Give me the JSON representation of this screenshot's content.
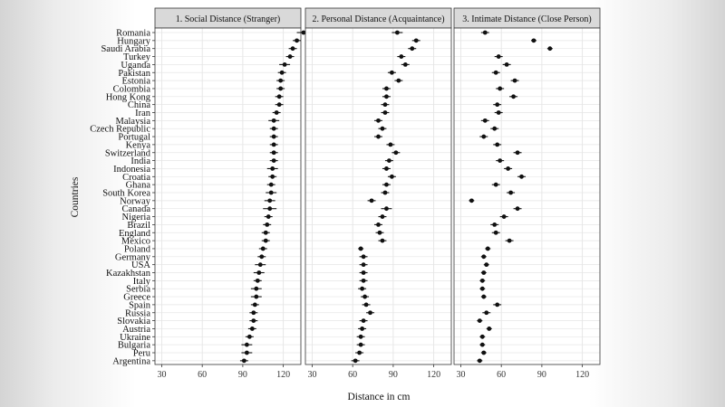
{
  "chart_data": {
    "type": "dot-range",
    "xlabel": "Distance in cm",
    "ylabel": "Countries",
    "xlim": [
      25,
      133
    ],
    "xticks": [
      30,
      60,
      90,
      120
    ],
    "grid": true,
    "countries": [
      "Romania",
      "Hungary",
      "Saudi Arabia",
      "Turkey",
      "Uganda",
      "Pakistan",
      "Estonia",
      "Colombia",
      "Hong Kong",
      "China",
      "Iran",
      "Malaysia",
      "Czech Republic",
      "Portugal",
      "Kenya",
      "Switzerland",
      "India",
      "Indonesia",
      "Croatia",
      "Ghana",
      "South Korea",
      "Norway",
      "Canada",
      "Nigeria",
      "Brazil",
      "England",
      "Mexico",
      "Poland",
      "Germany",
      "USA",
      "Kazakhstan",
      "Italy",
      "Serbia",
      "Greece",
      "Spain",
      "Russia",
      "Slovakia",
      "Austria",
      "Ukraine",
      "Bulgaria",
      "Peru",
      "Argentina"
    ],
    "panels": [
      {
        "title": "1. Social Distance (Stranger)",
        "values": [
          135,
          130,
          127,
          125,
          121,
          119,
          118,
          118,
          117,
          117,
          115,
          113,
          113,
          113,
          113,
          113,
          113,
          112,
          112,
          111,
          111,
          110,
          110,
          109,
          108,
          107,
          107,
          105,
          104,
          103,
          102,
          101,
          100,
          100,
          99,
          98,
          98,
          97,
          95,
          93,
          93,
          91
        ],
        "errors": [
          5,
          3,
          3,
          3,
          4,
          3,
          3,
          3,
          3,
          3,
          3,
          4,
          3,
          3,
          3,
          3,
          3,
          4,
          3,
          3,
          4,
          4,
          5,
          3,
          3,
          3,
          3,
          3,
          3,
          4,
          4,
          3,
          4,
          4,
          3,
          3,
          3,
          3,
          3,
          4,
          4,
          3
        ]
      },
      {
        "title": "2. Personal Distance (Acquaintance)",
        "values": [
          93,
          107,
          104,
          96,
          99,
          89,
          94,
          85,
          85,
          84,
          84,
          79,
          82,
          79,
          88,
          92,
          87,
          85,
          89,
          85,
          84,
          74,
          85,
          82,
          79,
          80,
          82,
          66,
          68,
          68,
          68,
          68,
          67,
          69,
          70,
          73,
          68,
          67,
          66,
          66,
          65,
          62
        ],
        "errors": [
          4,
          3,
          3,
          3,
          3,
          3,
          3,
          3,
          3,
          3,
          3,
          3,
          3,
          3,
          3,
          3,
          3,
          3,
          3,
          3,
          3,
          3,
          4,
          3,
          3,
          3,
          3,
          2,
          3,
          3,
          3,
          3,
          3,
          3,
          3,
          3,
          3,
          3,
          3,
          3,
          3,
          3
        ]
      },
      {
        "title": "3. Intimate Distance (Close Person)",
        "values": [
          48,
          84,
          96,
          58,
          64,
          56,
          70,
          59,
          69,
          57,
          58,
          48,
          55,
          47,
          57,
          72,
          59,
          65,
          75,
          56,
          67,
          38,
          72,
          62,
          55,
          56,
          66,
          50,
          47,
          49,
          47,
          46,
          46,
          47,
          57,
          49,
          44,
          51,
          46,
          46,
          47,
          44
        ],
        "errors": [
          3,
          2,
          2,
          3,
          3,
          3,
          3,
          3,
          3,
          3,
          3,
          3,
          3,
          3,
          3,
          3,
          3,
          3,
          3,
          3,
          3,
          2,
          3,
          3,
          3,
          3,
          3,
          2,
          2,
          2,
          2,
          2,
          2,
          2,
          3,
          3,
          2,
          2,
          2,
          2,
          2,
          2
        ]
      }
    ]
  }
}
